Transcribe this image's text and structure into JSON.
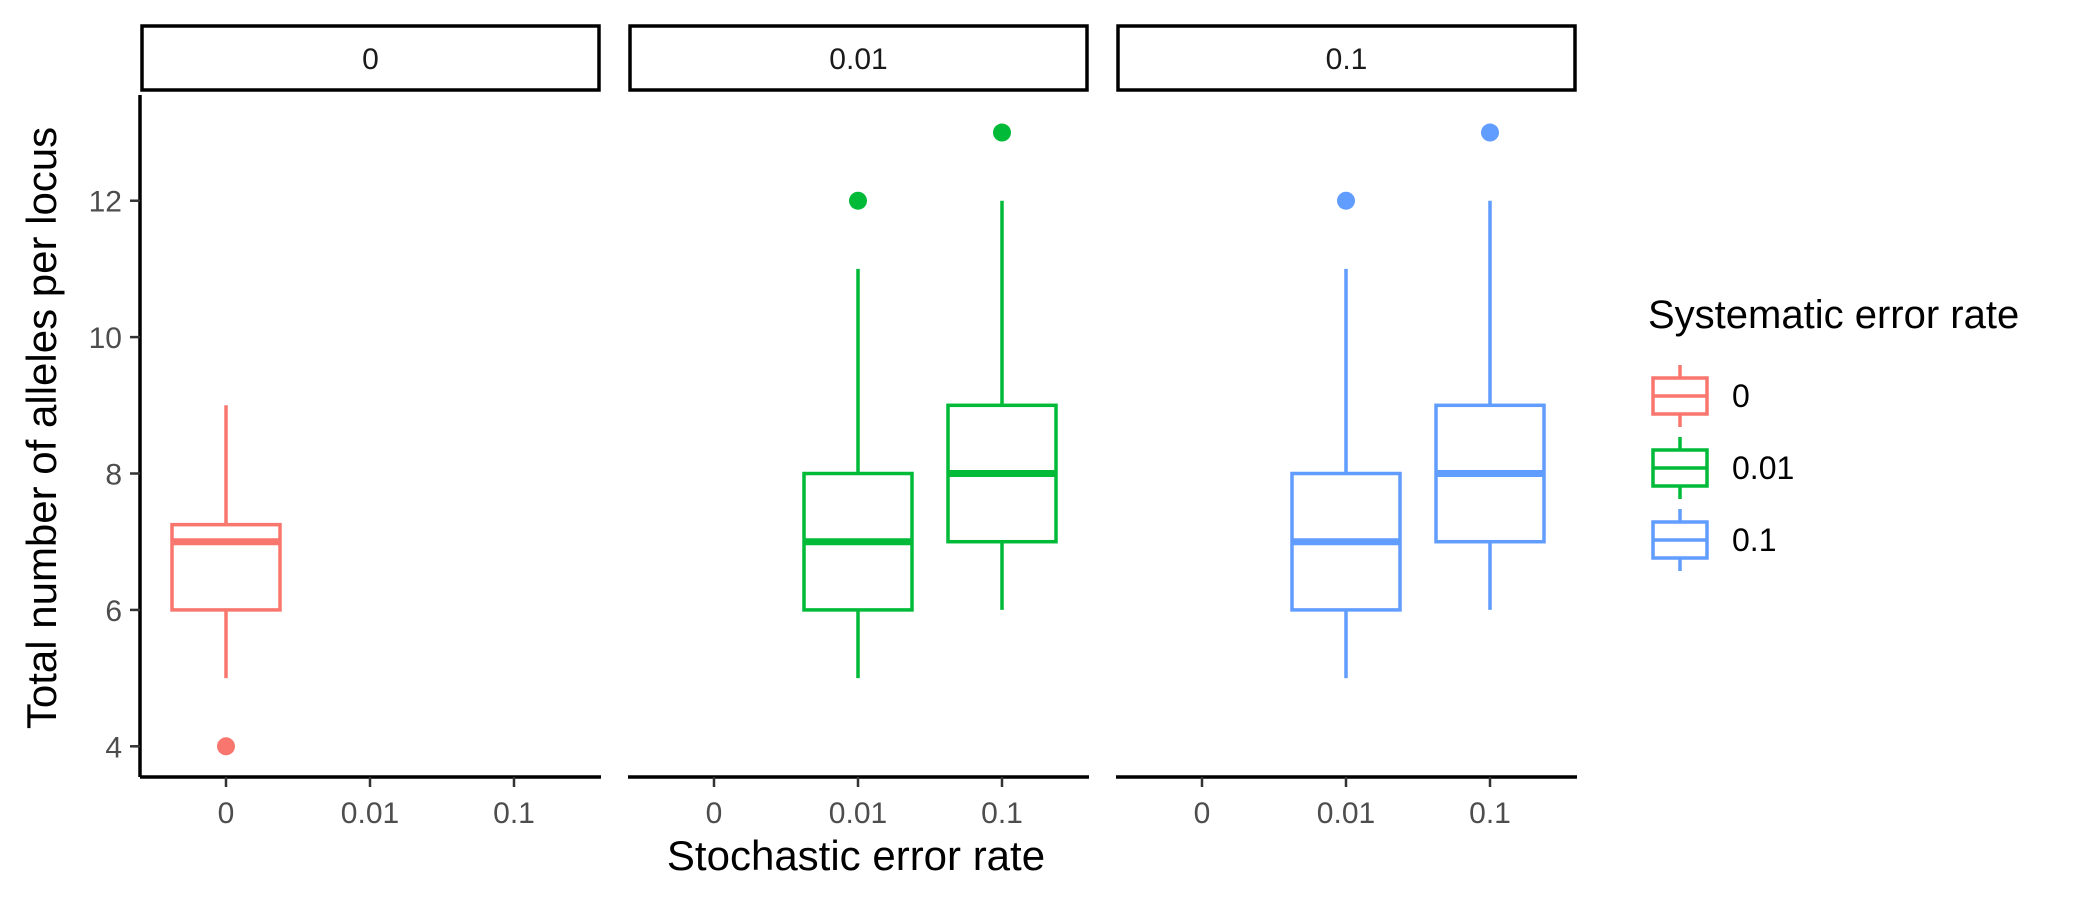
{
  "chart_data": {
    "type": "boxplot",
    "xlabel": "Stochastic error rate",
    "ylabel": "Total number of alleles per locus",
    "ylim": [
      3.55,
      13.55
    ],
    "yticks": [
      4,
      6,
      8,
      10,
      12
    ],
    "categories": [
      "0",
      "0.01",
      "0.1"
    ],
    "grid": false,
    "facet_by": "Systematic error rate",
    "legend": {
      "title": "Systematic error rate",
      "position": "right",
      "entries": [
        {
          "label": "0",
          "color": "#F8766D"
        },
        {
          "label": "0.01",
          "color": "#00BA38"
        },
        {
          "label": "0.1",
          "color": "#619CFF"
        }
      ]
    },
    "panels": [
      {
        "strip": "0",
        "color": "#F8766D",
        "boxes": [
          {
            "x": "0",
            "whisker_low": 5,
            "q1": 6,
            "median": 7,
            "q3": 7.25,
            "whisker_high": 9,
            "outliers": [
              4
            ]
          }
        ]
      },
      {
        "strip": "0.01",
        "color": "#00BA38",
        "boxes": [
          {
            "x": "0.01",
            "whisker_low": 5,
            "q1": 6,
            "median": 7,
            "q3": 8,
            "whisker_high": 11,
            "outliers": [
              12
            ]
          },
          {
            "x": "0.1",
            "whisker_low": 6,
            "q1": 7,
            "median": 8,
            "q3": 9,
            "whisker_high": 12,
            "outliers": [
              13
            ]
          }
        ]
      },
      {
        "strip": "0.1",
        "color": "#619CFF",
        "boxes": [
          {
            "x": "0.01",
            "whisker_low": 5,
            "q1": 6,
            "median": 7,
            "q3": 8,
            "whisker_high": 11,
            "outliers": [
              12
            ]
          },
          {
            "x": "0.1",
            "whisker_low": 6,
            "q1": 7,
            "median": 8,
            "q3": 9,
            "whisker_high": 12,
            "outliers": [
              13
            ]
          }
        ]
      }
    ]
  }
}
